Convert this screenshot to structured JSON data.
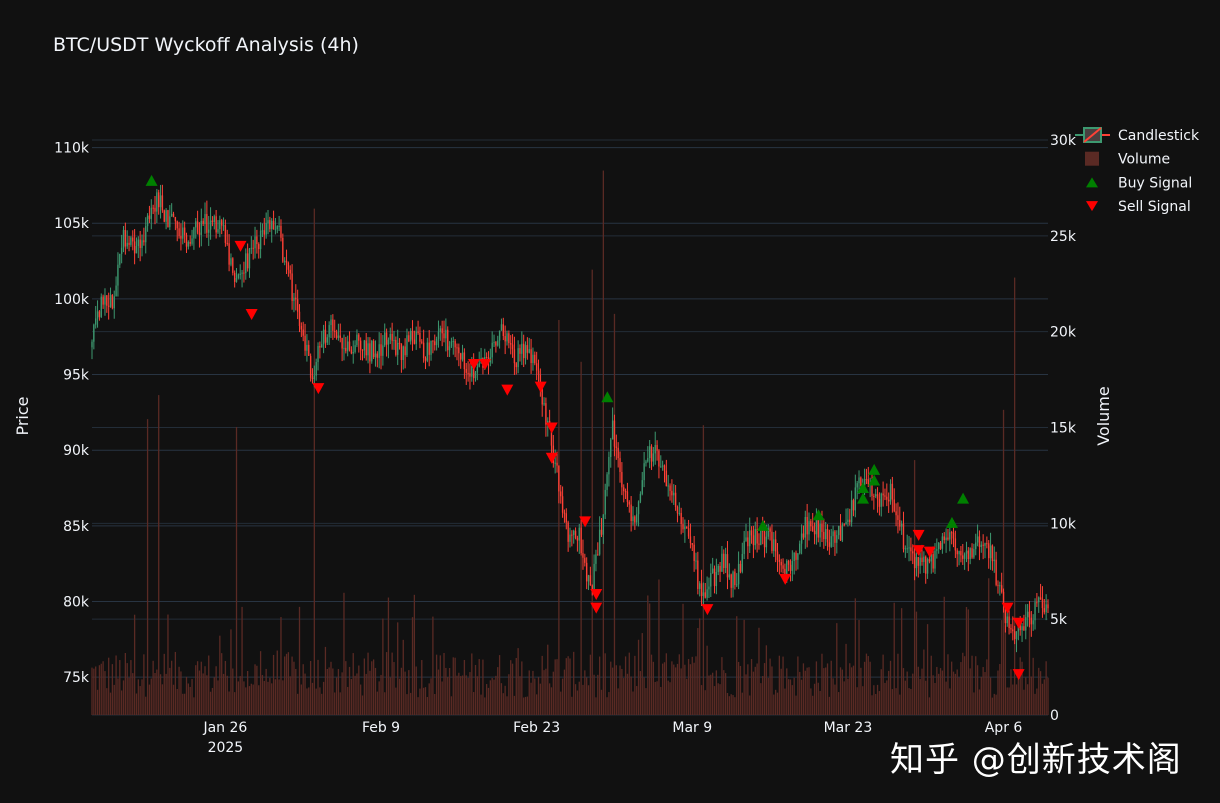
{
  "chart_data": {
    "type": "candlestick",
    "title": "BTC/USDT Wyckoff Analysis (4h)",
    "ylabel": "Price",
    "y2label": "Volume",
    "x_ticks": [
      {
        "date": "2025-01-26",
        "label": "Jan 26",
        "sub": "2025"
      },
      {
        "date": "2025-02-09",
        "label": "Feb 9",
        "sub": ""
      },
      {
        "date": "2025-02-23",
        "label": "Feb 23",
        "sub": ""
      },
      {
        "date": "2025-03-09",
        "label": "Mar 9",
        "sub": ""
      },
      {
        "date": "2025-03-23",
        "label": "Mar 23",
        "sub": ""
      },
      {
        "date": "2025-04-06",
        "label": "Apr 6",
        "sub": ""
      }
    ],
    "xlim": [
      "2025-01-14",
      "2025-04-10"
    ],
    "ylim": [
      72500,
      110500
    ],
    "y_ticks": [
      75000,
      80000,
      85000,
      90000,
      95000,
      100000,
      105000,
      110000
    ],
    "y_tick_labels": [
      "75k",
      "80k",
      "85k",
      "90k",
      "95k",
      "100k",
      "105k",
      "110k"
    ],
    "y2lim": [
      0,
      30000
    ],
    "y2_ticks": [
      0,
      5000,
      10000,
      15000,
      20000,
      25000,
      30000
    ],
    "y2_tick_labels": [
      "0",
      "5k",
      "10k",
      "15k",
      "20k",
      "25k",
      "30k"
    ],
    "price_path": [
      [
        "2025-01-14",
        96800
      ],
      [
        "2025-01-15",
        99500
      ],
      [
        "2025-01-16",
        100000
      ],
      [
        "2025-01-17",
        104200
      ],
      [
        "2025-01-18",
        103600
      ],
      [
        "2025-01-19",
        104500
      ],
      [
        "2025-01-20",
        106800
      ],
      [
        "2025-01-21",
        105200
      ],
      [
        "2025-01-22",
        104800
      ],
      [
        "2025-01-23",
        103800
      ],
      [
        "2025-01-24",
        105100
      ],
      [
        "2025-01-25",
        104800
      ],
      [
        "2025-01-26",
        105000
      ],
      [
        "2025-01-27",
        100500
      ],
      [
        "2025-01-28",
        102500
      ],
      [
        "2025-01-29",
        103800
      ],
      [
        "2025-01-30",
        104800
      ],
      [
        "2025-01-31",
        104200
      ],
      [
        "2025-02-01",
        101000
      ],
      [
        "2025-02-02",
        97800
      ],
      [
        "2025-02-03",
        95000
      ],
      [
        "2025-02-04",
        97600
      ],
      [
        "2025-02-05",
        98200
      ],
      [
        "2025-02-06",
        96800
      ],
      [
        "2025-02-07",
        97100
      ],
      [
        "2025-02-08",
        96500
      ],
      [
        "2025-02-09",
        96800
      ],
      [
        "2025-02-10",
        97500
      ],
      [
        "2025-02-11",
        96200
      ],
      [
        "2025-02-12",
        97800
      ],
      [
        "2025-02-13",
        96400
      ],
      [
        "2025-02-14",
        97600
      ],
      [
        "2025-02-15",
        97300
      ],
      [
        "2025-02-16",
        96500
      ],
      [
        "2025-02-17",
        95600
      ],
      [
        "2025-02-18",
        95200
      ],
      [
        "2025-02-19",
        96500
      ],
      [
        "2025-02-20",
        98200
      ],
      [
        "2025-02-21",
        96000
      ],
      [
        "2025-02-22",
        96500
      ],
      [
        "2025-02-23",
        96200
      ],
      [
        "2025-02-24",
        92000
      ],
      [
        "2025-02-25",
        88600
      ],
      [
        "2025-02-26",
        84500
      ],
      [
        "2025-02-27",
        84200
      ],
      [
        "2025-02-28",
        80500
      ],
      [
        "2025-03-01",
        85000
      ],
      [
        "2025-03-02",
        91500
      ],
      [
        "2025-03-03",
        87000
      ],
      [
        "2025-03-04",
        85500
      ],
      [
        "2025-03-05",
        89800
      ],
      [
        "2025-03-06",
        90000
      ],
      [
        "2025-03-07",
        87000
      ],
      [
        "2025-03-08",
        86000
      ],
      [
        "2025-03-09",
        84200
      ],
      [
        "2025-03-10",
        80000
      ],
      [
        "2025-03-11",
        81500
      ],
      [
        "2025-03-12",
        82800
      ],
      [
        "2025-03-13",
        81000
      ],
      [
        "2025-03-14",
        84000
      ],
      [
        "2025-03-15",
        84400
      ],
      [
        "2025-03-16",
        84200
      ],
      [
        "2025-03-17",
        82800
      ],
      [
        "2025-03-18",
        81800
      ],
      [
        "2025-03-19",
        84800
      ],
      [
        "2025-03-20",
        85200
      ],
      [
        "2025-03-21",
        84300
      ],
      [
        "2025-03-22",
        84200
      ],
      [
        "2025-03-23",
        84600
      ],
      [
        "2025-03-24",
        87500
      ],
      [
        "2025-03-25",
        87700
      ],
      [
        "2025-03-26",
        86800
      ],
      [
        "2025-03-27",
        87200
      ],
      [
        "2025-03-28",
        84500
      ],
      [
        "2025-03-29",
        82500
      ],
      [
        "2025-03-30",
        82300
      ],
      [
        "2025-03-31",
        82700
      ],
      [
        "2025-04-01",
        84800
      ],
      [
        "2025-04-02",
        83200
      ],
      [
        "2025-04-03",
        82800
      ],
      [
        "2025-04-04",
        83800
      ],
      [
        "2025-04-05",
        83200
      ],
      [
        "2025-04-06",
        80000
      ],
      [
        "2025-04-07",
        77500
      ],
      [
        "2025-04-08",
        78500
      ],
      [
        "2025-04-09",
        79500
      ],
      [
        "2025-04-10",
        80000
      ]
    ],
    "buy_signals": [
      [
        "2025-01-19",
        107800
      ],
      [
        "2025-03-01",
        93500
      ],
      [
        "2025-03-15",
        85000
      ],
      [
        "2025-03-20",
        85700
      ],
      [
        "2025-03-24",
        86800
      ],
      [
        "2025-03-24",
        87500
      ],
      [
        "2025-03-25",
        88000
      ],
      [
        "2025-03-25",
        88700
      ],
      [
        "2025-04-01",
        85200
      ],
      [
        "2025-04-02",
        86800
      ]
    ],
    "sell_signals": [
      [
        "2025-01-27",
        103500
      ],
      [
        "2025-01-28",
        99000
      ],
      [
        "2025-02-03",
        94100
      ],
      [
        "2025-02-17",
        95700
      ],
      [
        "2025-02-18",
        95700
      ],
      [
        "2025-02-20",
        94000
      ],
      [
        "2025-02-23",
        94200
      ],
      [
        "2025-02-24",
        91500
      ],
      [
        "2025-02-24",
        89500
      ],
      [
        "2025-02-27",
        85300
      ],
      [
        "2025-02-28",
        80500
      ],
      [
        "2025-02-28",
        79600
      ],
      [
        "2025-03-10",
        79500
      ],
      [
        "2025-03-17",
        81500
      ],
      [
        "2025-03-29",
        84400
      ],
      [
        "2025-03-29",
        83400
      ],
      [
        "2025-03-30",
        83300
      ],
      [
        "2025-04-06",
        79600
      ],
      [
        "2025-04-07",
        78600
      ],
      [
        "2025-04-07",
        75200
      ]
    ],
    "volume_spikes": [
      [
        "2025-01-19",
        22000
      ],
      [
        "2025-01-20",
        20000
      ],
      [
        "2025-01-27",
        16500
      ],
      [
        "2025-02-03",
        29000
      ],
      [
        "2025-02-25",
        22000
      ],
      [
        "2025-02-27",
        24000
      ],
      [
        "2025-02-28",
        24500
      ],
      [
        "2025-03-01",
        28500
      ],
      [
        "2025-03-02",
        23500
      ],
      [
        "2025-03-10",
        18500
      ],
      [
        "2025-03-29",
        14500
      ],
      [
        "2025-04-06",
        17000
      ],
      [
        "2025-04-07",
        27500
      ]
    ],
    "colors": {
      "increasing": "#3d9970",
      "decreasing": "#ff4136",
      "volume": "#5a2a24",
      "buy": "#008000",
      "sell": "#ff0000",
      "background": "#111111",
      "grid": "#283442",
      "text": "#f2f5fa"
    },
    "legend": {
      "position": "top-right",
      "items": [
        {
          "label": "Candlestick",
          "kind": "candle"
        },
        {
          "label": "Volume",
          "kind": "bar"
        },
        {
          "label": "Buy Signal",
          "kind": "buy"
        },
        {
          "label": "Sell Signal",
          "kind": "sell"
        }
      ]
    }
  },
  "watermark": "知乎 @创新技术阁"
}
